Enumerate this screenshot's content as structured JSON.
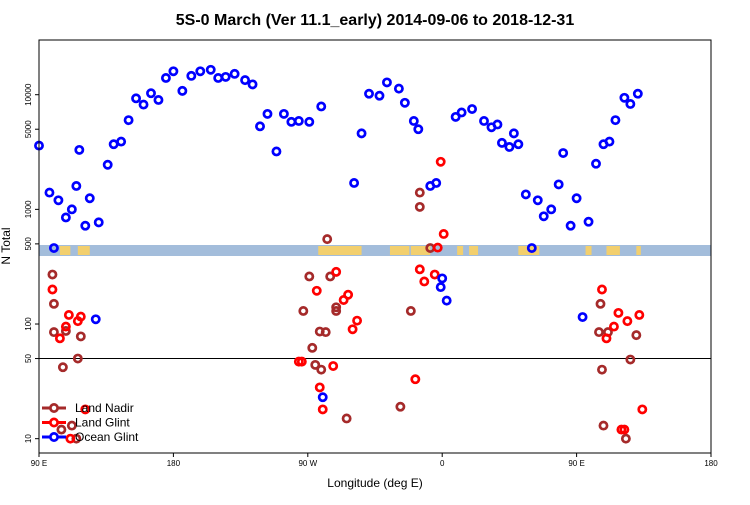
{
  "chart_data": {
    "type": "scatter",
    "title": "5S-0 March (Ver 11.1_early)   2014-09-06 to 2018-12-31",
    "xlabel": "Longitude (deg E)",
    "ylabel": "N Total",
    "x_scale": "linear",
    "y_scale": "log",
    "xlim": [
      90,
      540
    ],
    "ylim": [
      7.5,
      30000
    ],
    "x_ticks": [
      {
        "value": 90,
        "label": "90 E"
      },
      {
        "value": 180,
        "label": "180"
      },
      {
        "value": 270,
        "label": "90 W"
      },
      {
        "value": 360,
        "label": "0"
      },
      {
        "value": 450,
        "label": "90 E"
      },
      {
        "value": 540,
        "label": "180"
      }
    ],
    "y_ticks": [
      {
        "value": 10,
        "label": "10"
      },
      {
        "value": 50,
        "label": "50"
      },
      {
        "value": 100,
        "label": "100"
      },
      {
        "value": 500,
        "label": "500"
      },
      {
        "value": 1000,
        "label": "1000"
      },
      {
        "value": 5000,
        "label": "5000"
      },
      {
        "value": 10000,
        "label": "10000"
      }
    ],
    "reference_line": 50,
    "map_strip_range": [
      290,
      380
    ],
    "legend_position": "bottom-left",
    "colors": {
      "Land Nadir": "#a52a2a",
      "Land Glint": "#ff0000",
      "Ocean Glint": "#0000ff",
      "map_ocean": "#a3bddb",
      "map_land": "#f2cf6e"
    },
    "series": [
      {
        "name": "Land Nadir",
        "points": [
          [
            99,
            270
          ],
          [
            100,
            150
          ],
          [
            100,
            85
          ],
          [
            105,
            12
          ],
          [
            106,
            42
          ],
          [
            108,
            87
          ],
          [
            112,
            13
          ],
          [
            115,
            10
          ],
          [
            116,
            50
          ],
          [
            118,
            78
          ],
          [
            267,
            130
          ],
          [
            271,
            260
          ],
          [
            273,
            62
          ],
          [
            275,
            44
          ],
          [
            278,
            86
          ],
          [
            279,
            40
          ],
          [
            282,
            85
          ],
          [
            283,
            550
          ],
          [
            285,
            260
          ],
          [
            289,
            130
          ],
          [
            289,
            140
          ],
          [
            296,
            15
          ],
          [
            332,
            19
          ],
          [
            339,
            130
          ],
          [
            345,
            1050
          ],
          [
            345,
            1400
          ],
          [
            352,
            460
          ],
          [
            465,
            85
          ],
          [
            466,
            150
          ],
          [
            467,
            40
          ],
          [
            468,
            13
          ],
          [
            471,
            85
          ],
          [
            483,
            10
          ],
          [
            486,
            49
          ],
          [
            490,
            80
          ]
        ]
      },
      {
        "name": "Land Glint",
        "points": [
          [
            99,
            200
          ],
          [
            104,
            75
          ],
          [
            108,
            95
          ],
          [
            110,
            120
          ],
          [
            111,
            10
          ],
          [
            116,
            106
          ],
          [
            118,
            116
          ],
          [
            121,
            18
          ],
          [
            264,
            47
          ],
          [
            266,
            47
          ],
          [
            276,
            195
          ],
          [
            278,
            28
          ],
          [
            280,
            18
          ],
          [
            287,
            43
          ],
          [
            289,
            285
          ],
          [
            294,
            162
          ],
          [
            297,
            180
          ],
          [
            300,
            90
          ],
          [
            303,
            107
          ],
          [
            342,
            33
          ],
          [
            345,
            300
          ],
          [
            348,
            235
          ],
          [
            355,
            270
          ],
          [
            357,
            464
          ],
          [
            359,
            2600
          ],
          [
            361,
            610
          ],
          [
            467,
            200
          ],
          [
            470,
            75
          ],
          [
            475,
            95
          ],
          [
            478,
            125
          ],
          [
            480,
            12
          ],
          [
            482,
            12
          ],
          [
            484,
            106
          ],
          [
            492,
            120
          ],
          [
            494,
            18
          ]
        ]
      },
      {
        "name": "Ocean Glint",
        "points": [
          [
            90,
            3600
          ],
          [
            97,
            1400
          ],
          [
            100,
            460
          ],
          [
            103,
            1200
          ],
          [
            108,
            850
          ],
          [
            112,
            1000
          ],
          [
            115,
            1600
          ],
          [
            117,
            3300
          ],
          [
            121,
            720
          ],
          [
            124,
            1250
          ],
          [
            128,
            110
          ],
          [
            130,
            770
          ],
          [
            136,
            2450
          ],
          [
            140,
            3700
          ],
          [
            145,
            3900
          ],
          [
            150,
            6000
          ],
          [
            155,
            9300
          ],
          [
            160,
            8200
          ],
          [
            165,
            10300
          ],
          [
            170,
            9000
          ],
          [
            175,
            14000
          ],
          [
            180,
            16000
          ],
          [
            186,
            10800
          ],
          [
            192,
            14600
          ],
          [
            198,
            16000
          ],
          [
            205,
            16500
          ],
          [
            210,
            14000
          ],
          [
            215,
            14300
          ],
          [
            221,
            15200
          ],
          [
            228,
            13400
          ],
          [
            233,
            12300
          ],
          [
            238,
            5300
          ],
          [
            243,
            6800
          ],
          [
            249,
            3200
          ],
          [
            254,
            6800
          ],
          [
            259,
            5800
          ],
          [
            264,
            5900
          ],
          [
            271,
            5800
          ],
          [
            279,
            7900
          ],
          [
            280,
            23
          ],
          [
            301,
            1700
          ],
          [
            306,
            4600
          ],
          [
            311,
            10200
          ],
          [
            318,
            9800
          ],
          [
            323,
            12800
          ],
          [
            331,
            11300
          ],
          [
            335,
            8500
          ],
          [
            341,
            5900
          ],
          [
            344,
            5000
          ],
          [
            352,
            1600
          ],
          [
            356,
            1700
          ],
          [
            359,
            210
          ],
          [
            360,
            250
          ],
          [
            363,
            160
          ],
          [
            369,
            6400
          ],
          [
            373,
            7000
          ],
          [
            380,
            7500
          ],
          [
            388,
            5900
          ],
          [
            393,
            5200
          ],
          [
            397,
            5500
          ],
          [
            400,
            3800
          ],
          [
            405,
            3500
          ],
          [
            408,
            4600
          ],
          [
            411,
            3700
          ],
          [
            416,
            1350
          ],
          [
            420,
            460
          ],
          [
            424,
            1200
          ],
          [
            428,
            870
          ],
          [
            433,
            1000
          ],
          [
            438,
            1650
          ],
          [
            441,
            3100
          ],
          [
            446,
            720
          ],
          [
            450,
            1250
          ],
          [
            454,
            115
          ],
          [
            458,
            780
          ],
          [
            463,
            2500
          ],
          [
            468,
            3700
          ],
          [
            472,
            3900
          ],
          [
            476,
            6000
          ],
          [
            482,
            9400
          ],
          [
            486,
            8300
          ],
          [
            491,
            10200
          ]
        ]
      }
    ]
  }
}
